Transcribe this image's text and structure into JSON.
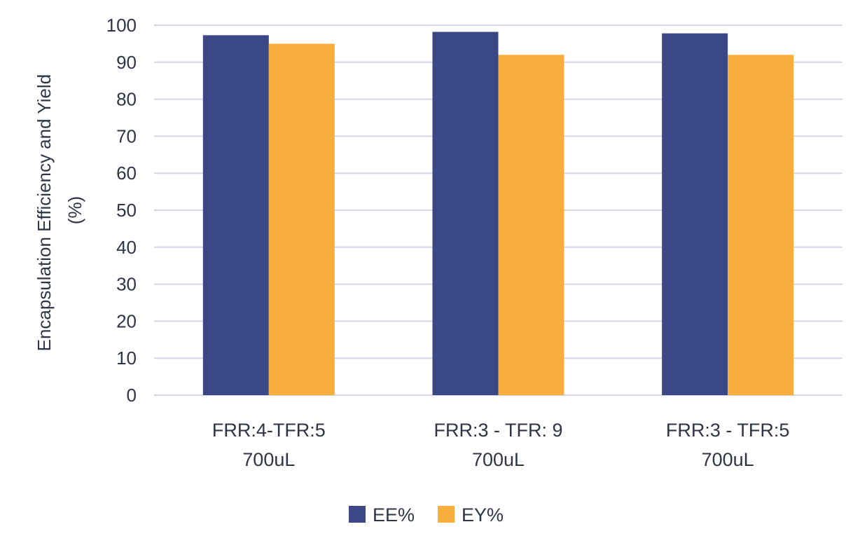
{
  "chart_data": {
    "type": "bar",
    "categories": [
      [
        "FRR:4-TFR:5",
        "700uL"
      ],
      [
        "FRR:3 - TFR: 9",
        "700uL"
      ],
      [
        "FRR:3 - TFR:5",
        "700uL"
      ]
    ],
    "series": [
      {
        "name": "EE%",
        "values": [
          97.3,
          98.2,
          97.8
        ],
        "color": "#3b4886"
      },
      {
        "name": "EY%",
        "values": [
          95.0,
          92.0,
          92.0
        ],
        "color": "#f8ae3c"
      }
    ],
    "ylabel": [
      "Encapsulation Efficiency and Yield",
      "(%)"
    ],
    "ylim": [
      0,
      100
    ],
    "yticks": [
      0,
      10,
      20,
      30,
      40,
      50,
      60,
      70,
      80,
      90,
      100
    ],
    "grid": true,
    "gridColor": "#d4d6ea",
    "legend": "bottom",
    "textColor": "#2f3447"
  }
}
